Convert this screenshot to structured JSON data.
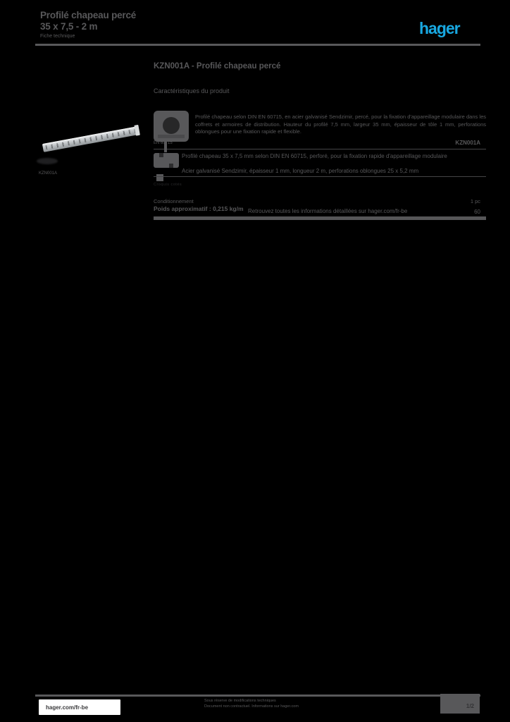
{
  "colors": {
    "background": "#000000",
    "text_gray": "#58585a",
    "logo_blue": "#18a8e1",
    "dark_caption": "#2b2b2d",
    "white_box": "#ffffff",
    "rail_silver": "#c2c6c9"
  },
  "header": {
    "title_line1": "Profilé chapeau percé",
    "title_line2": "35 x 7,5 - 2 m",
    "subtitle": "Fiche technique",
    "logo_text": "hager"
  },
  "main": {
    "heading": "KZN001A - Profilé chapeau percé",
    "subheading": "Caractéristiques du produit",
    "image_caption": "KZN001A"
  },
  "table": {
    "row1": {
      "description": "Profilé chapeau selon DIN EN 60715, en acier galvanisé Sendzimir, percé, pour la fixation d'appareillage modulaire dans les coffrets et armoires de distribution. Hauteur du profilé 7,5 mm, largeur 35 mm, épaisseur de tôle 1 mm, perforations oblongues pour une fixation rapide et flexible.",
      "icon_caption": "EN 60715",
      "reference": "KZN001A"
    },
    "row2": {
      "line1": "Profilé chapeau 35 x 7,5 mm selon DIN EN 60715, perforé, pour la fixation rapide d'appareillage modulaire",
      "line2": "Acier galvanisé Sendzimir, épaisseur 1 mm, longueur 2 m, perforations oblongues 25 x 5,2 mm",
      "caption": "Croquis cotés"
    },
    "row3": {
      "label": "Conditionnement",
      "value": "1 pc",
      "note": "Poids approximatif : 0,215 kg/m",
      "link": "Retrouvez toutes les informations détaillées sur hager.com/fr-be",
      "value2": "60"
    }
  },
  "footer": {
    "website": "hager.com/fr-be",
    "disclaimer1": "Sous réserve de modifications techniques",
    "disclaimer2": "Document non contractuel. Informations sur hager.com",
    "page": "1/2"
  }
}
